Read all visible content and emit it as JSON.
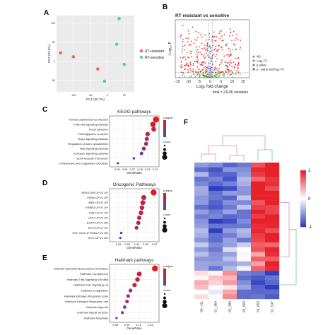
{
  "panel_labels": {
    "A": "A",
    "B": "B",
    "C": "C",
    "D": "D",
    "E": "E",
    "F": "F"
  },
  "colors": {
    "resistant": "#f0655f",
    "sensitive": "#4fd0b4",
    "padj_low": "#e41a1c",
    "padj_high": "#3b4cc0",
    "volcano_ns": "#888888",
    "volcano_fc": "#3fae3f",
    "volcano_p": "#3f6fd0",
    "volcano_both": "#e41a1c",
    "heat_high": "#e8202a",
    "heat_low": "#2d3fbf",
    "dendro": "#e28bb8",
    "dendro2": "#6cc7a8"
  },
  "chart_data": [
    {
      "id": "A",
      "type": "scatter",
      "xlabel": "PC1 (30.7%)",
      "ylabel": "PC2 (22.9%)",
      "xlim": [
        -150,
        80
      ],
      "ylim": [
        -80,
        120
      ],
      "xticks": [
        "-100",
        "-50",
        "0",
        "50"
      ],
      "yticks": [
        "100",
        "50",
        "0",
        "-50"
      ],
      "legend": {
        "position": "right",
        "entries": [
          "RT-resistant",
          "RT-sensitive"
        ]
      },
      "series": [
        {
          "name": "RT-resistant",
          "points": [
            [
              -138,
              22
            ],
            [
              -100,
              12
            ],
            [
              -28,
              -20
            ]
          ]
        },
        {
          "name": "RT-sensitive",
          "points": [
            [
              35,
              112
            ],
            [
              28,
              45
            ],
            [
              50,
              -8
            ],
            [
              -8,
              -52
            ]
          ]
        }
      ]
    },
    {
      "id": "B",
      "type": "scatter",
      "title": "RT resistant vs sensitive",
      "xlabel": "Log₂ fold change",
      "ylabel": "-Log₁₀ P",
      "xlim": [
        -16,
        18
      ],
      "ylim": [
        0,
        15
      ],
      "xticks": [
        "-15",
        "-10",
        "-5",
        "0",
        "5",
        "10",
        "15"
      ],
      "legend": {
        "position": "right",
        "entries": [
          "NS",
          "Log₂ FC",
          "p-value",
          "p - value and log₂ FC"
        ]
      },
      "footer": "total = 21106 variables",
      "cutoff_fc": 1,
      "cutoff_p": 1.3
    },
    {
      "id": "C",
      "type": "scatter",
      "title": "KEGG pathways",
      "xlabel": "GeneRatio",
      "xlim": [
        0.04,
        0.105
      ],
      "xticks": [
        "0.05",
        "0.06",
        "0.07",
        "0.08",
        "0.09",
        "0.10"
      ],
      "legend_color_title": "p.adjust",
      "legend_size_title": "Count",
      "categories": [
        "Human papillomavirus infection",
        "PI3K-Akt signaling pathway",
        "Focal adhesion",
        "Proteoglycans in cancer",
        "Rap1 signaling pathway",
        "Regulation of actin cytoskeleton",
        "Ras signaling pathway",
        "Estrogen signaling pathway",
        "ECM-receptor interaction",
        "Complement and coagulation cascades"
      ],
      "x": [
        0.101,
        0.097,
        0.098,
        0.09,
        0.089,
        0.088,
        0.085,
        0.082,
        0.072,
        0.051
      ],
      "count": [
        40,
        36,
        30,
        28,
        26,
        25,
        24,
        20,
        12,
        10
      ],
      "padj": [
        0.001,
        0.004,
        0.006,
        0.01,
        0.012,
        0.013,
        0.015,
        0.02,
        0.025,
        0.03
      ]
    },
    {
      "id": "D",
      "type": "scatter",
      "title": "Oncogenic Pathways",
      "xlabel": "GeneRatio",
      "xlim": [
        0.02,
        0.075
      ],
      "xticks": [
        "0.03",
        "0.04",
        "0.05",
        "0.06",
        "0.07"
      ],
      "legend_color_title": "p.adjust",
      "legend_size_title": "Count",
      "categories": [
        "KRAS.600 UP.V1 UP",
        "KRAS.DF.V1 UP",
        "MEK UP.V1 UP",
        "ERBB2 UP.V1 UP",
        "RAF UP.V1 UP",
        "LEF1 UP.V1 UP",
        "EGFR UP.V1 DN",
        "E2F1 UP.V1 UP",
        "ESC V6.5 UP EARLY.V1 DN",
        "MYC UP.V1 DN"
      ],
      "x": [
        0.069,
        0.058,
        0.057,
        0.056,
        0.055,
        0.053,
        0.052,
        0.05,
        0.033,
        0.032
      ],
      "count": [
        30,
        26,
        25,
        24,
        24,
        22,
        22,
        20,
        14,
        13
      ],
      "padj": [
        0.004,
        0.01,
        0.011,
        0.012,
        0.012,
        0.013,
        0.014,
        0.015,
        0.03,
        0.035
      ]
    },
    {
      "id": "E",
      "type": "scatter",
      "title": "Hallmark pathways",
      "xlabel": "GeneRatio",
      "xlim": [
        0.07,
        0.155
      ],
      "xticks": [
        "0.08",
        "0.10",
        "0.12",
        "0.14"
      ],
      "legend_color_title": "p.adjust",
      "legend_size_title": "Count",
      "categories": [
        "Hallmark Epithelial Mesenchymal Transition",
        "Hallmark Complement",
        "Hallmark Tnfa Signaling Via Nfkb",
        "Hallmark Kras Signaling Up",
        "Hallmark Coagulation",
        "Hallmark Estrogen Response Early",
        "Hallmark Estrogen Response Late",
        "Hallmark Hypoxia",
        "Hallmark Apical Junction",
        "Hallmark Apoptosis"
      ],
      "x": [
        0.148,
        0.121,
        0.118,
        0.113,
        0.106,
        0.102,
        0.1,
        0.096,
        0.092,
        0.082
      ],
      "count": [
        30,
        25,
        24,
        23,
        20,
        19,
        19,
        18,
        16,
        13
      ],
      "padj": [
        0.001,
        0.004,
        0.005,
        0.006,
        0.008,
        0.009,
        0.01,
        0.012,
        0.014,
        0.018
      ]
    },
    {
      "id": "F",
      "type": "heatmap",
      "columns": [
        "S6_411",
        "S1_364",
        "S5_389",
        "S9_563",
        "S9_653",
        "S7_537"
      ],
      "color_scale": {
        "min": -1,
        "max": 1,
        "ticks": [
          "1",
          "0",
          "-1"
        ]
      },
      "row_groups": [
        {
          "rows": 17,
          "values": [
            -0.6,
            -0.8,
            -0.7,
            -0.5,
            0.9,
            1.0
          ]
        },
        {
          "rows": 6,
          "values": [
            -0.3,
            -0.5,
            -0.4,
            -0.2,
            0.6,
            0.8
          ]
        },
        {
          "rows": 6,
          "values": [
            0.2,
            0.1,
            0.3,
            -0.6,
            -0.8,
            -0.9
          ]
        }
      ]
    }
  ]
}
